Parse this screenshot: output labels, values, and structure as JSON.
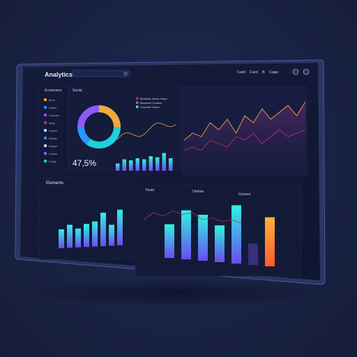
{
  "header": {
    "title": "Analytics",
    "search_placeholder": "",
    "nav": [
      "Card",
      "Card",
      "B",
      "Cage"
    ]
  },
  "sidebar": {
    "heading": "Economics",
    "items": [
      "Menu",
      "Shares",
      "Channels",
      "Setup",
      "Content",
      "Display",
      "Analyze",
      "Contact",
      "Config"
    ]
  },
  "donut_panel": {
    "heading": "Social",
    "big_value": "47,5%",
    "legend": [
      "Biodiode Vizzor Gutur",
      "Biosocen Cuusuri",
      "Cucurter Outuru"
    ],
    "slices": [
      {
        "value": 25,
        "color": "#f2a93b"
      },
      {
        "value": 35,
        "color": "#1fd1d9"
      },
      {
        "value": 15,
        "color": "#2a93ff"
      },
      {
        "value": 25,
        "color": "#8b5cf6"
      }
    ],
    "bars": [
      0.35,
      0.55,
      0.5,
      0.6,
      0.55,
      0.7,
      0.65,
      0.85,
      0.6
    ]
  },
  "line_panel": {
    "series_a": [
      0.45,
      0.55,
      0.5,
      0.7,
      0.6,
      0.75,
      0.55,
      0.8,
      0.7,
      0.9,
      0.75,
      0.85,
      0.95,
      0.8,
      1.0
    ],
    "series_b": [
      0.3,
      0.35,
      0.3,
      0.45,
      0.4,
      0.35,
      0.5,
      0.45,
      0.55,
      0.4,
      0.5,
      0.6,
      0.5,
      0.55,
      0.6
    ]
  },
  "bottom_left": {
    "heading": "Elements",
    "bars": [
      0.45,
      0.55,
      0.45,
      0.55,
      0.6,
      0.8,
      0.5,
      0.85
    ]
  },
  "bottom_right": {
    "labels": [
      "Tread",
      "Ondoia",
      "Gunses"
    ],
    "bars": [
      {
        "v": 0.55,
        "c": "cyan"
      },
      {
        "v": 0.8,
        "c": "cyan"
      },
      {
        "v": 0.75,
        "c": "cyan"
      },
      {
        "v": 0.6,
        "c": "cyan"
      },
      {
        "v": 0.95,
        "c": "cyan"
      },
      {
        "v": 0.35,
        "c": "purple"
      },
      {
        "v": 0.8,
        "c": "orange"
      }
    ],
    "line": [
      0.5,
      0.7,
      0.6,
      0.75,
      0.65,
      0.7,
      0.5,
      0.55,
      0.45,
      0.5,
      0.4
    ]
  }
}
